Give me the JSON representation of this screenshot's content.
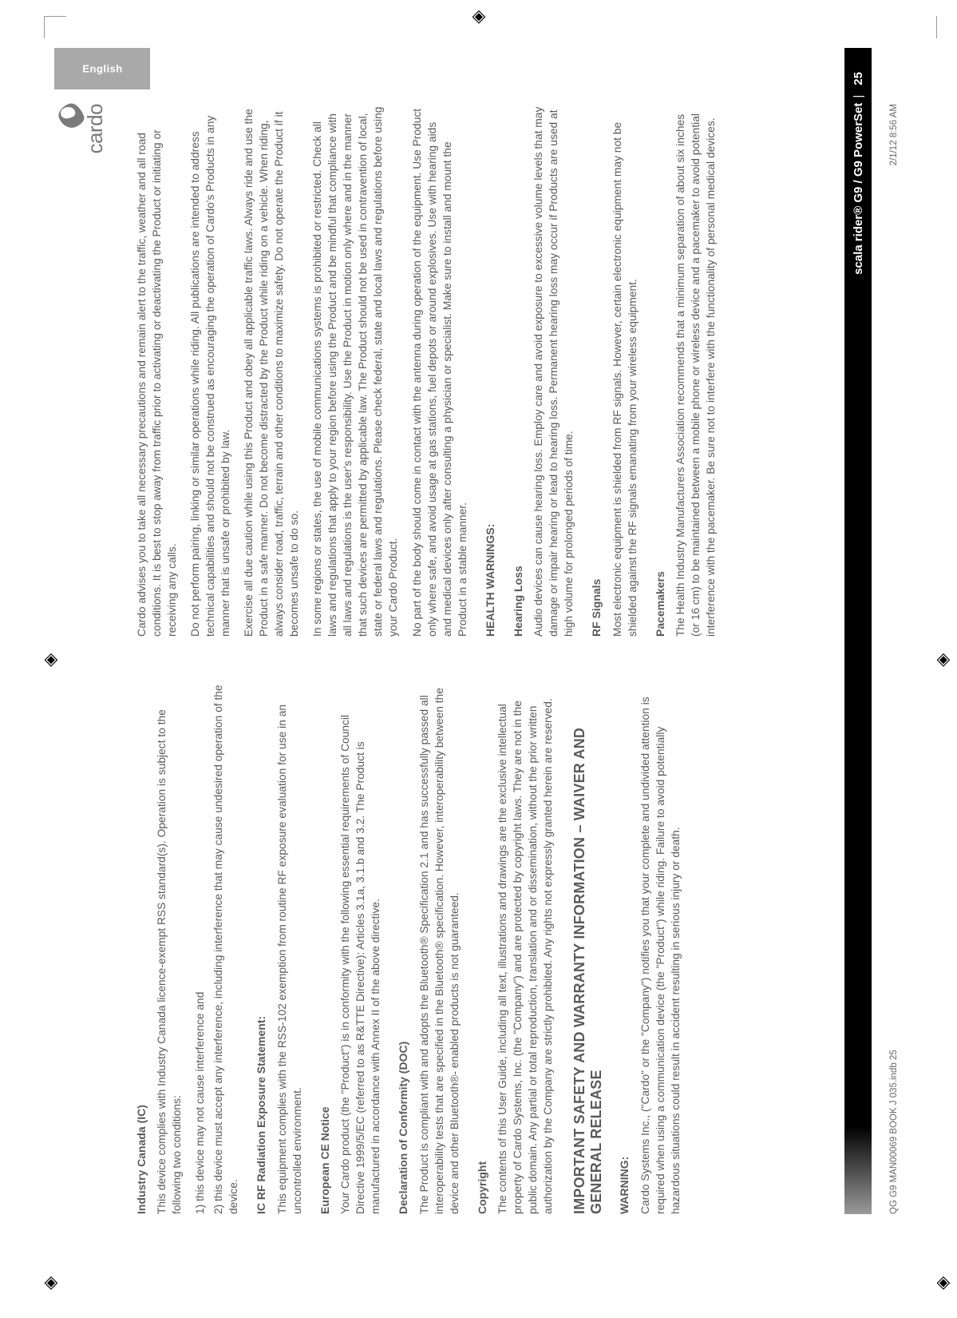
{
  "lang_tab": "English",
  "logo_text": "cardo",
  "left": {
    "h_ic": "Industry Canada (IC)",
    "ic_p1": "This device complies with Industry Canada licence-exempt RSS standard(s). Operation is subject to the following two conditions:",
    "ic_li1": "1) this device may not cause interference and",
    "ic_li2": "2) this device must accept any interference, including interference that may cause undesired operation of the device.",
    "h_icrf": "IC RF Radiation Exposure Statement:",
    "icrf_p": "This equipment complies with the RSS-102 exemption from routine RF exposure evaluation for use in an uncontrolled environment.",
    "h_ce": "European CE Notice",
    "ce_p": "Your Cardo product (the \"Product\") is in conformity with the following essential requirements of Council Directive 1999/5/EC (referred to as R&TTE Directive): Articles 3.1a, 3.1.b and 3.2. The Product is manufactured in accordance with Annex II of the above directive.",
    "h_doc": "Declaration of Conformity (DOC)",
    "doc_p": "The Product is compliant with and adopts the Bluetooth® Specification 2.1 and has successfully passed all interoperability tests that are specified in the Bluetooth® specification. However, interoperability between the device and other Bluetooth®- enabled products is not guaranteed.",
    "h_cp": "Copyright",
    "cp_p": "The contents of this User Guide, including all text, illustrations and drawings are the exclusive intellectual property of Cardo Systems, Inc. (the \"Company\") and are protected by copyright laws. They are not in the public domain. Any partial or total reproduction, translation and or dissemination, without the prior written authorization by the Company are strictly prohibited. Any rights not expressly granted herein are reserved.",
    "h_big": "IMPORTANT SAFETY AND WARRANTY INFORMATION – WAIVER AND GENERAL RELEASE",
    "h_warn": "WARNING:",
    "warn_p": "Cardo Systems Inc., (\"Cardo\" or the \"Company\") notifies you that your complete and undivided attention is required when using a communication device (the \"Product\") while riding. Failure to avoid potentially hazardous situations could result in accident resulting in serious injury or death."
  },
  "right": {
    "p1": "Cardo advises you to take all necessary precautions and remain alert to the traffic, weather and all road conditions. It is best to stop away from traffic prior to activating or deactivating the Product or initiating or receiving any calls.",
    "p2": "Do not perform pairing, linking or similar operations while riding. All publications are intended to address technical capabilities and should not be construed as encouraging the operation of Cardo's Products in any manner that is unsafe or prohibited by law.",
    "p3": "Exercise all due caution while using this Product and obey all applicable traffic laws. Always ride and use the Product in a safe manner. Do not become distracted by the Product while riding on a vehicle. When riding, always consider road, traffic, terrain and other conditions to maximize safety. Do not operate the Product if it becomes unsafe to do so.",
    "p4": "In some regions or states, the use of mobile communications systems is prohibited or restricted. Check all laws and regulations that apply to your region before using the Product and be mindful that compliance with all laws and regulations is the user's responsibility. Use the Product in motion only where and in the manner that such devices are permitted by applicable law. The Product should not be used in contravention of local, state or federal laws and regulations. Please check federal, state and local laws and regulations before using your Cardo Product.",
    "p5": "No part of the body should come in contact with the antenna during operation of the equipment. Use Product only where safe, and avoid usage at gas stations, fuel depots or around explosives. Use with hearing aids and medical devices only after consulting a physician or specialist. Make sure to install and mount the Product in a stable manner.",
    "h_hw": "HEALTH WARNINGS:",
    "h_hl": "Hearing Loss",
    "hl_p": "Audio devices can cause hearing loss. Employ care and avoid exposure to excessive volume levels that may damage or impair hearing or lead to hearing loss. Permanent hearing loss may occur if Products are used at high volume for prolonged periods of time.",
    "h_rf": "RF Signals",
    "rf_p": "Most electronic equipment is shielded from RF signals. However, certain electronic equipment may not be shielded against the RF signals emanating from your wireless equipment.",
    "h_pm": "Pacemakers",
    "pm_p": "The Health Industry Manufacturers Association recommends that a minimum separation of about six inches (or 16 cm) to be maintained between a mobile phone or wireless device and a pacemaker to avoid potential interference with the pacemaker. Be sure not to interfere with the functionality of personal medical devices."
  },
  "blackbar": {
    "product": "scala rider® G9 / G9 PowerSet",
    "page": "25"
  },
  "footer": {
    "file": "QG G9 MAN00069 BOOK J 035.indb   25",
    "stamp": "2/1/12   8:56 AM"
  }
}
